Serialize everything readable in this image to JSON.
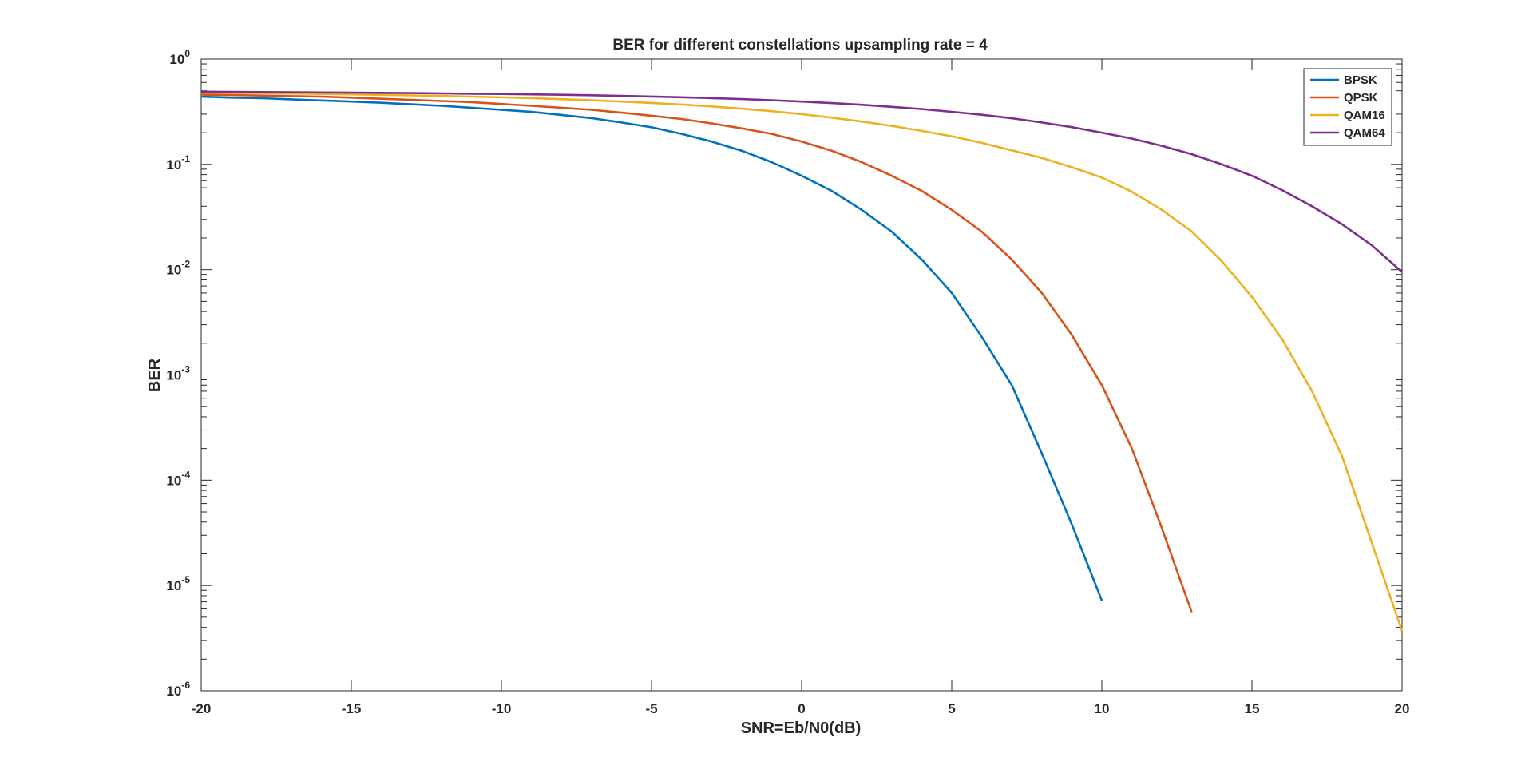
{
  "chart_data": {
    "type": "line",
    "title": "BER for different constellations upsampling rate = 4",
    "xlabel": "SNR=Eb/N0(dB)",
    "ylabel": "BER",
    "xlim": [
      -20,
      20
    ],
    "ylim": [
      1e-06,
      1
    ],
    "yscale": "log",
    "xticks": [
      -20,
      -15,
      -10,
      -5,
      0,
      5,
      10,
      15,
      20
    ],
    "xtick_labels": [
      "-20",
      "-15",
      "-10",
      "-5",
      "0",
      "5",
      "10",
      "15",
      "20"
    ],
    "yticks": [
      {
        "value": 1,
        "base": "10",
        "exp": "0"
      },
      {
        "value": 0.1,
        "base": "10",
        "exp": "-1"
      },
      {
        "value": 0.01,
        "base": "10",
        "exp": "-2"
      },
      {
        "value": 0.001,
        "base": "10",
        "exp": "-3"
      },
      {
        "value": 0.0001,
        "base": "10",
        "exp": "-4"
      },
      {
        "value": 1e-05,
        "base": "10",
        "exp": "-5"
      },
      {
        "value": 1e-06,
        "base": "10",
        "exp": "-6"
      }
    ],
    "grid": false,
    "legend_position": "top-right",
    "series": [
      {
        "name": "BPSK",
        "color": "#0072BD",
        "x": [
          -20,
          -19,
          -18,
          -17,
          -16,
          -15,
          -14,
          -13,
          -12,
          -11,
          -10,
          -9,
          -8,
          -7,
          -6,
          -5,
          -4,
          -3,
          -2,
          -1,
          0,
          1,
          2,
          3,
          4,
          5,
          6,
          7,
          8,
          9,
          10
        ],
        "y": [
          0.44,
          0.43,
          0.425,
          0.415,
          0.405,
          0.395,
          0.385,
          0.372,
          0.36,
          0.345,
          0.33,
          0.315,
          0.295,
          0.275,
          0.25,
          0.225,
          0.195,
          0.165,
          0.135,
          0.105,
          0.078,
          0.056,
          0.037,
          0.023,
          0.0125,
          0.006,
          0.0023,
          0.0008,
          0.00018,
          3.8e-05,
          7.2e-06
        ]
      },
      {
        "name": "QPSK",
        "color": "#D95319",
        "x": [
          -20,
          -19,
          -18,
          -17,
          -16,
          -15,
          -14,
          -13,
          -12,
          -11,
          -10,
          -9,
          -8,
          -7,
          -6,
          -5,
          -4,
          -3,
          -2,
          -1,
          0,
          1,
          2,
          3,
          4,
          5,
          6,
          7,
          8,
          9,
          10,
          11,
          12,
          13
        ],
        "y": [
          0.46,
          0.455,
          0.45,
          0.445,
          0.44,
          0.43,
          0.42,
          0.41,
          0.4,
          0.39,
          0.375,
          0.36,
          0.345,
          0.33,
          0.31,
          0.29,
          0.27,
          0.245,
          0.22,
          0.195,
          0.165,
          0.135,
          0.105,
          0.078,
          0.056,
          0.037,
          0.023,
          0.0125,
          0.006,
          0.0024,
          0.0008,
          0.0002,
          3.5e-05,
          5.5e-06
        ]
      },
      {
        "name": "QAM16",
        "color": "#EDB120",
        "x": [
          -20,
          -19,
          -18,
          -17,
          -16,
          -15,
          -14,
          -13,
          -12,
          -11,
          -10,
          -9,
          -8,
          -7,
          -6,
          -5,
          -4,
          -3,
          -2,
          -1,
          0,
          1,
          2,
          3,
          4,
          5,
          6,
          7,
          8,
          9,
          10,
          11,
          12,
          13,
          14,
          15,
          16,
          17,
          18,
          19,
          20
        ],
        "y": [
          0.48,
          0.477,
          0.474,
          0.47,
          0.466,
          0.462,
          0.457,
          0.452,
          0.446,
          0.44,
          0.433,
          0.425,
          0.416,
          0.406,
          0.395,
          0.383,
          0.37,
          0.355,
          0.338,
          0.32,
          0.3,
          0.278,
          0.255,
          0.232,
          0.208,
          0.185,
          0.16,
          0.136,
          0.115,
          0.094,
          0.075,
          0.055,
          0.037,
          0.023,
          0.012,
          0.0055,
          0.0022,
          0.0007,
          0.00017,
          2.5e-05,
          3.7e-06
        ]
      },
      {
        "name": "QAM64",
        "color": "#7E2F8E",
        "x": [
          -20,
          -19,
          -18,
          -17,
          -16,
          -15,
          -14,
          -13,
          -12,
          -11,
          -10,
          -9,
          -8,
          -7,
          -6,
          -5,
          -4,
          -3,
          -2,
          -1,
          0,
          1,
          2,
          3,
          4,
          5,
          6,
          7,
          8,
          9,
          10,
          11,
          12,
          13,
          14,
          15,
          16,
          17,
          18,
          19,
          20
        ],
        "y": [
          0.49,
          0.488,
          0.486,
          0.484,
          0.482,
          0.48,
          0.478,
          0.475,
          0.472,
          0.469,
          0.466,
          0.462,
          0.458,
          0.453,
          0.447,
          0.441,
          0.434,
          0.426,
          0.417,
          0.407,
          0.395,
          0.382,
          0.368,
          0.352,
          0.335,
          0.316,
          0.296,
          0.274,
          0.25,
          0.226,
          0.2,
          0.176,
          0.15,
          0.125,
          0.1,
          0.078,
          0.057,
          0.04,
          0.027,
          0.017,
          0.0095
        ]
      }
    ]
  }
}
